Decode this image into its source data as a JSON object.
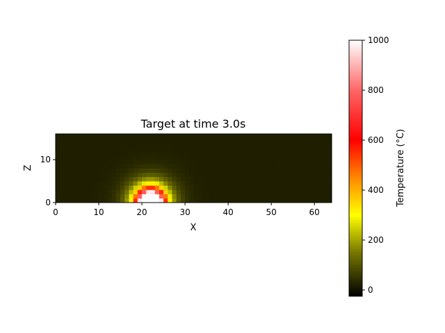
{
  "chart_data": {
    "type": "heatmap",
    "title": "Target at time 3.0s",
    "xlabel": "X",
    "ylabel": "Z",
    "xlim": [
      0,
      64
    ],
    "ylim": [
      0,
      16
    ],
    "xticks": [
      "0",
      "10",
      "20",
      "30",
      "40",
      "50",
      "60"
    ],
    "yticks": [
      "0",
      "10"
    ],
    "grid": false,
    "background_value": 20,
    "hotspot": {
      "center_x": 22,
      "surface_z": 0,
      "peak_value": 1000,
      "core_radius": 2.5,
      "decay_length": 3.2
    },
    "colorbar": {
      "label": "Temperature (°C)",
      "range": [
        -25,
        1000
      ],
      "ticks": [
        "0",
        "200",
        "400",
        "600",
        "800",
        "1000"
      ],
      "tick_values": [
        0,
        200,
        400,
        600,
        800,
        1000
      ],
      "colormap_stops": [
        {
          "value": -25,
          "color": "#000000"
        },
        {
          "value": 150,
          "color": "#777700"
        },
        {
          "value": 300,
          "color": "#ffff00"
        },
        {
          "value": 450,
          "color": "#ff8800"
        },
        {
          "value": 600,
          "color": "#ff0000"
        },
        {
          "value": 800,
          "color": "#ff6666"
        },
        {
          "value": 1000,
          "color": "#ffffff"
        }
      ]
    }
  }
}
